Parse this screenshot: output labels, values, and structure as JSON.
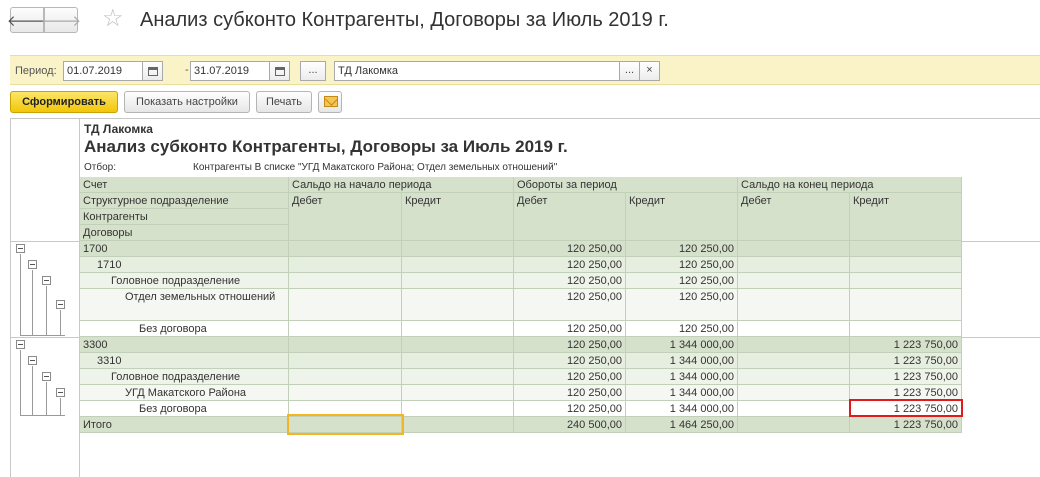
{
  "window": {
    "title": "Анализ субконто Контрагенты, Договоры  за Июль 2019 г."
  },
  "nav": {
    "back_glyph": "🡐",
    "forward_glyph": "🡒",
    "star_glyph": "☆"
  },
  "period": {
    "label": "Период:",
    "from": "01.07.2019",
    "to": "31.07.2019",
    "dash": "-",
    "more_label": "...",
    "organization": "ТД Лакомка",
    "org_select_label": "...",
    "org_clear_label": "×"
  },
  "toolbar": {
    "generate_label": "Сформировать",
    "settings_label": "Показать настройки",
    "print_label": "Печать"
  },
  "report": {
    "company": "ТД Лакомка",
    "title": "Анализ субконто Контрагенты, Договоры  за Июль 2019 г.",
    "filter_label": "Отбор:",
    "filter_value": "Контрагенты В списке \"УГД Макатского Района; Отдел земельных отношений\""
  },
  "table": {
    "headers": {
      "account": "Счет",
      "opening": "Сальдо на начало периода",
      "turnover": "Обороты за период",
      "closing": "Сальдо на конец периода",
      "division": "Структурное подразделение",
      "counterparty": "Контрагенты",
      "contract": "Договоры",
      "debit": "Дебет",
      "credit": "Кредит"
    },
    "rows": [
      {
        "label": "1700",
        "level": 1,
        "ob_dt": "120 250,00",
        "ob_kt": "120 250,00",
        "end_kt": ""
      },
      {
        "label": "1710",
        "level": 2,
        "ob_dt": "120 250,00",
        "ob_kt": "120 250,00",
        "end_kt": ""
      },
      {
        "label": "Головное подразделение",
        "level": 3,
        "ob_dt": "120 250,00",
        "ob_kt": "120 250,00",
        "end_kt": ""
      },
      {
        "label": "Отдел земельных отношений",
        "level": 4,
        "ob_dt": "120 250,00",
        "ob_kt": "120 250,00",
        "end_kt": ""
      },
      {
        "label": "Без договора",
        "level": 5,
        "ob_dt": "120 250,00",
        "ob_kt": "120 250,00",
        "end_kt": ""
      },
      {
        "label": "3300",
        "level": 1,
        "ob_dt": "120 250,00",
        "ob_kt": "1 344 000,00",
        "end_kt": "1 223 750,00"
      },
      {
        "label": "3310",
        "level": 2,
        "ob_dt": "120 250,00",
        "ob_kt": "1 344 000,00",
        "end_kt": "1 223 750,00"
      },
      {
        "label": "Головное подразделение",
        "level": 3,
        "ob_dt": "120 250,00",
        "ob_kt": "1 344 000,00",
        "end_kt": "1 223 750,00"
      },
      {
        "label": "УГД Макатского Района",
        "level": 4,
        "ob_dt": "120 250,00",
        "ob_kt": "1 344 000,00",
        "end_kt": "1 223 750,00"
      },
      {
        "label": "Без договора",
        "level": 5,
        "ob_dt": "120 250,00",
        "ob_kt": "1 344 000,00",
        "end_kt": "1 223 750,00"
      }
    ],
    "total": {
      "label": "Итого",
      "ob_dt": "240 500,00",
      "ob_kt": "1 464 250,00",
      "end_kt": "1 223 750,00"
    }
  }
}
